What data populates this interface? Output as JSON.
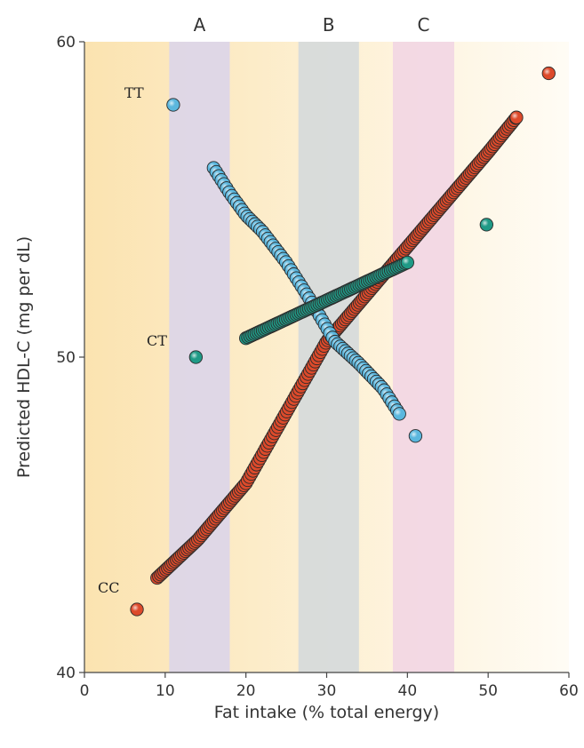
{
  "chart_data": {
    "type": "scatter",
    "xlabel": "Fat intake (% total energy)",
    "ylabel": "Predicted HDL-C (mg per dL)",
    "xlim": [
      0,
      60
    ],
    "ylim": [
      40,
      60
    ],
    "x_ticks": [
      0,
      10,
      20,
      30,
      40,
      50,
      60
    ],
    "y_ticks": [
      40,
      50,
      60
    ],
    "grid": false,
    "legend": "none",
    "bands": [
      {
        "label": "A",
        "x_range": [
          10.5,
          18
        ],
        "color": "#d9d3ec"
      },
      {
        "label": "B",
        "x_range": [
          26.5,
          34
        ],
        "color": "#d2d8dc"
      },
      {
        "label": "C",
        "x_range": [
          38.2,
          45.8
        ],
        "color": "#f1d3e4"
      }
    ],
    "background_gradient": {
      "left_color": "#fbe3b0",
      "right_color": "#fffcf5"
    },
    "series": [
      {
        "name": "TT",
        "color": "#5bb7de",
        "x_range": [
          11,
          41
        ],
        "y_range": [
          58,
          47.5
        ],
        "points": [
          [
            11,
            58
          ],
          [
            16,
            56
          ],
          [
            18,
            55.2
          ],
          [
            20,
            54.5
          ],
          [
            22,
            54
          ],
          [
            25,
            53
          ],
          [
            28,
            51.8
          ],
          [
            31,
            50.5
          ],
          [
            34,
            49.8
          ],
          [
            37,
            49
          ],
          [
            39,
            48.2
          ],
          [
            41,
            47.5
          ]
        ]
      },
      {
        "name": "CT",
        "color": "#1f9a86",
        "x_range": [
          13.8,
          49.8
        ],
        "y_range": [
          50,
          54.2
        ],
        "points": [
          [
            13.8,
            50
          ],
          [
            20,
            50.6
          ],
          [
            30,
            51.8
          ],
          [
            40,
            53
          ],
          [
            49.8,
            54.2
          ]
        ]
      },
      {
        "name": "CC",
        "color": "#dd4a2b",
        "x_range": [
          6.5,
          57.5
        ],
        "y_range": [
          42,
          59
        ],
        "points": [
          [
            6.5,
            42
          ],
          [
            9,
            43
          ],
          [
            14,
            44.2
          ],
          [
            20,
            46
          ],
          [
            30,
            50.5
          ],
          [
            40,
            53.5
          ],
          [
            50,
            56.5
          ],
          [
            53.5,
            57.6
          ],
          [
            57.5,
            59
          ]
        ]
      }
    ],
    "labels": [
      {
        "text": "TT",
        "series": "TT"
      },
      {
        "text": "CT",
        "series": "CT"
      },
      {
        "text": "CC",
        "series": "CC"
      }
    ]
  }
}
